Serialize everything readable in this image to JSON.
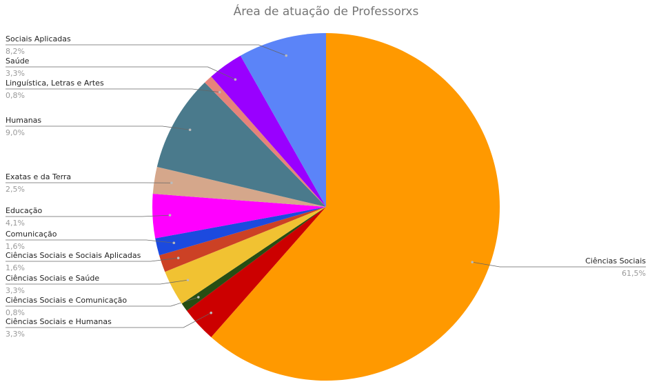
{
  "chart_data": {
    "type": "pie",
    "title": "Área de atuação de Professorxs",
    "categories": [
      "Ciências Sociais",
      "Ciências Sociais e Humanas",
      "Ciências Sociais e Comunicação",
      "Ciências Sociais e Saúde",
      "Ciências Sociais e Sociais Aplicadas",
      "Comunicação",
      "Educação",
      "Exatas e da Terra",
      "Humanas",
      "Linguística, Letras e Artes",
      "Saúde",
      "Sociais Aplicadas"
    ],
    "values": [
      61.5,
      3.3,
      0.8,
      3.3,
      1.6,
      1.6,
      4.1,
      2.5,
      9.0,
      0.8,
      3.3,
      8.2
    ],
    "value_labels": [
      "61,5%",
      "3,3%",
      "0,8%",
      "3,3%",
      "1,6%",
      "1,6%",
      "4,1%",
      "2,5%",
      "9,0%",
      "0,8%",
      "3,3%",
      "8,2%"
    ],
    "colors": [
      "#ff9900",
      "#cc0000",
      "#274e13",
      "#f1c232",
      "#cc4125",
      "#1c4adf",
      "#ff00ff",
      "#d5a78b",
      "#4a7a8c",
      "#e6837a",
      "#9900ff",
      "#5b84f8"
    ]
  }
}
